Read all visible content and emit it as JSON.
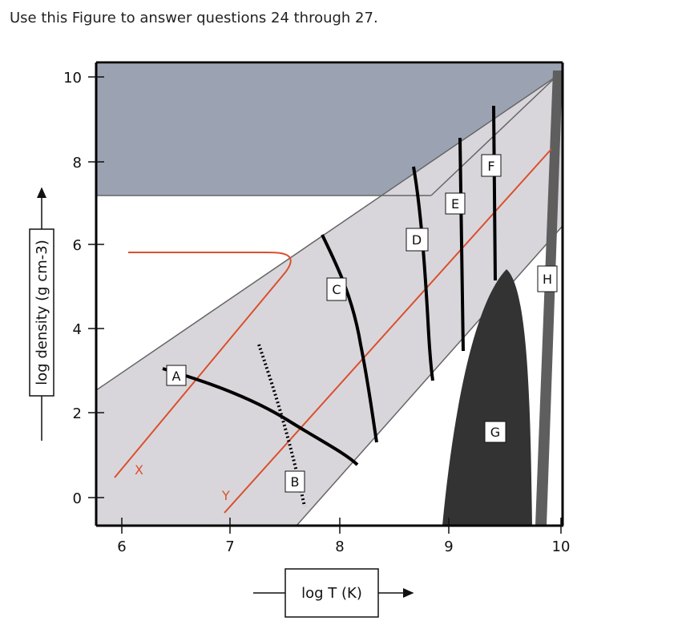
{
  "prompt": "Use this Figure to answer questions 24 through 27.",
  "x_axis": {
    "title": "log T (K)",
    "ticks": [
      "6",
      "7",
      "8",
      "9",
      "10"
    ]
  },
  "y_axis": {
    "title": "log density (g cm-3)",
    "ticks": [
      "10",
      "8",
      "6",
      "4",
      "2",
      "0"
    ]
  },
  "labels": {
    "A": "A",
    "B": "B",
    "C": "C",
    "D": "D",
    "E": "E",
    "F": "F",
    "G": "G",
    "H": "H",
    "X": "X",
    "Y": "Y"
  },
  "colors": {
    "top_region": "#9ba3b3",
    "band_region": "#d9d6db",
    "band_edge": "#666666",
    "red_line": "#d9502e",
    "black_curve": "#000000",
    "region_g": "#333333",
    "band_h": "#5e5e5e"
  }
}
